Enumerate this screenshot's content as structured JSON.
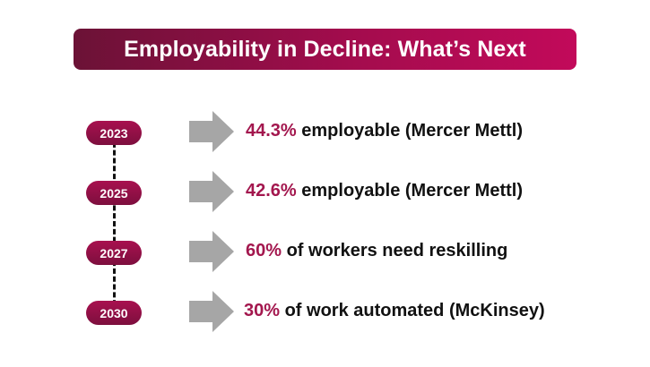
{
  "title": "Employability in Decline: What’s Next",
  "colors": {
    "accent": "#a3174e",
    "banner_start": "#6b1236",
    "banner_end": "#c20a5a",
    "arrow": "#a6a6a6"
  },
  "timeline": [
    {
      "year": "2023",
      "value": "44.3%",
      "text": " employable (Mercer Mettl)"
    },
    {
      "year": "2025",
      "value": "42.6%",
      "text": " employable (Mercer Mettl)"
    },
    {
      "year": "2027",
      "value": "60%",
      "text": " of workers need reskilling"
    },
    {
      "year": "2030",
      "value": "30%",
      "text": " of work automated (McKinsey)"
    }
  ]
}
